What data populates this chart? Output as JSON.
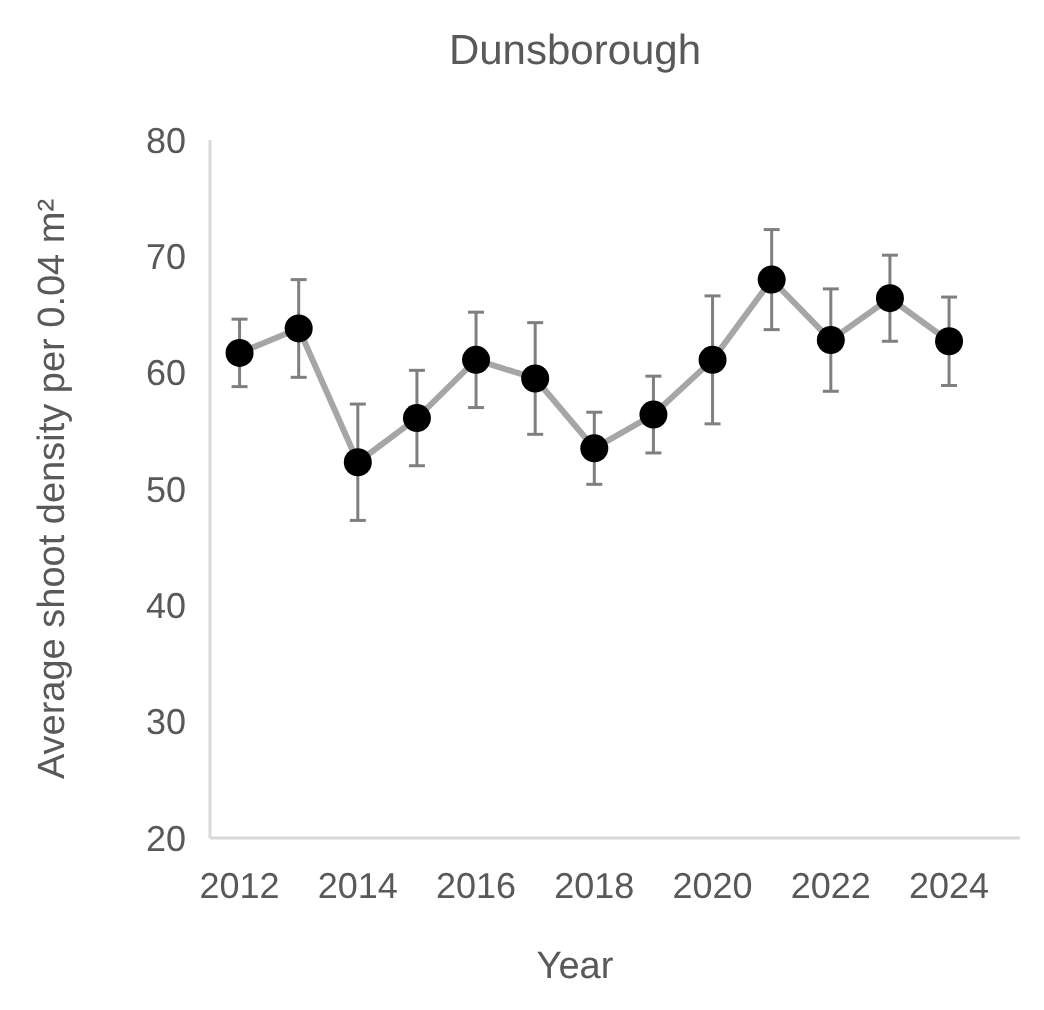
{
  "chart_data": {
    "type": "line",
    "title": "Dunsborough",
    "xlabel": "Year",
    "ylabel": "Average shoot density per 0.04 m²",
    "x": [
      2012,
      2013,
      2014,
      2015,
      2016,
      2017,
      2018,
      2019,
      2020,
      2021,
      2022,
      2023,
      2024
    ],
    "series": [
      {
        "color": "#a6a6a6",
        "colors": [
          "#000000",
          "#000000",
          "#000000",
          "#000000",
          "#000000",
          "#000000",
          "#000000",
          "#000000",
          "#000000",
          "#000000",
          "#000000",
          "#000000",
          "#000000"
        ],
        "values": [
          61.7,
          63.8,
          52.3,
          56.1,
          61.1,
          59.5,
          53.5,
          56.4,
          61.1,
          68.0,
          62.8,
          66.4,
          62.7
        ],
        "errors": [
          2.9,
          4.2,
          5.0,
          4.1,
          4.1,
          4.8,
          3.1,
          3.3,
          5.5,
          4.3,
          4.4,
          3.7,
          3.8
        ]
      }
    ],
    "marker": "circle",
    "line_style": "solid",
    "grid": false,
    "xlim": [
      2011.5,
      2025.2
    ],
    "xticks": [
      2012,
      2014,
      2016,
      2018,
      2020,
      2022,
      2024
    ],
    "ylim": [
      20,
      80
    ],
    "yticks": [
      20,
      30,
      40,
      50,
      60,
      70,
      80
    ]
  }
}
